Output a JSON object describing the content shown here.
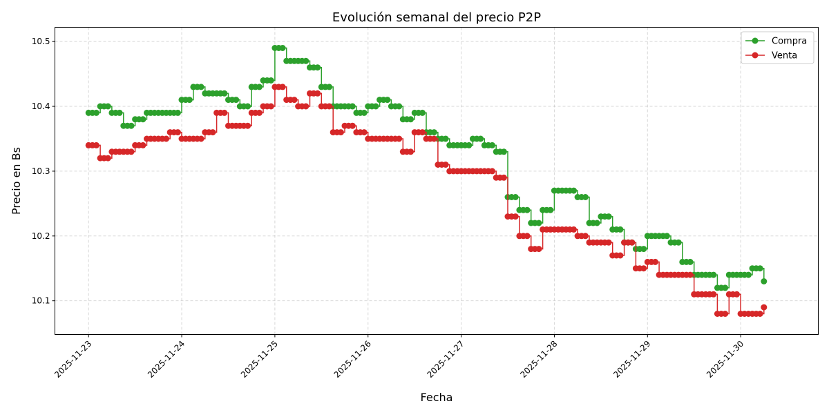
{
  "chart_data": {
    "type": "line",
    "title": "Evolución semanal del precio P2P",
    "xlabel": "Fecha",
    "ylabel": "Precio en Bs",
    "xlim": [
      "2025-11-22 15:20",
      "2025-11-30 20:00"
    ],
    "ylim": [
      10.048,
      10.522
    ],
    "x_ticks": [
      "2025-11-23",
      "2025-11-24",
      "2025-11-25",
      "2025-11-26",
      "2025-11-27",
      "2025-11-28",
      "2025-11-29",
      "2025-11-30"
    ],
    "y_ticks": [
      "10.1",
      "10.2",
      "10.3",
      "10.4",
      "10.5"
    ],
    "grid": true,
    "legend_position": "top-right",
    "x": [
      "2025-11-23 00:00",
      "2025-11-23 03:00",
      "2025-11-23 06:00",
      "2025-11-23 09:00",
      "2025-11-23 12:00",
      "2025-11-23 15:00",
      "2025-11-23 18:00",
      "2025-11-23 21:00",
      "2025-11-24 00:00",
      "2025-11-24 03:00",
      "2025-11-24 06:00",
      "2025-11-24 09:00",
      "2025-11-24 12:00",
      "2025-11-24 15:00",
      "2025-11-24 18:00",
      "2025-11-24 21:00",
      "2025-11-25 00:00",
      "2025-11-25 03:00",
      "2025-11-25 06:00",
      "2025-11-25 09:00",
      "2025-11-25 12:00",
      "2025-11-25 15:00",
      "2025-11-25 18:00",
      "2025-11-25 21:00",
      "2025-11-26 00:00",
      "2025-11-26 03:00",
      "2025-11-26 06:00",
      "2025-11-26 09:00",
      "2025-11-26 12:00",
      "2025-11-26 15:00",
      "2025-11-26 18:00",
      "2025-11-26 21:00",
      "2025-11-27 00:00",
      "2025-11-27 03:00",
      "2025-11-27 06:00",
      "2025-11-27 09:00",
      "2025-11-27 12:00",
      "2025-11-27 15:00",
      "2025-11-27 18:00",
      "2025-11-27 21:00",
      "2025-11-28 00:00",
      "2025-11-28 03:00",
      "2025-11-28 06:00",
      "2025-11-28 09:00",
      "2025-11-28 12:00",
      "2025-11-28 15:00",
      "2025-11-28 18:00",
      "2025-11-28 21:00",
      "2025-11-29 00:00",
      "2025-11-29 03:00",
      "2025-11-29 06:00",
      "2025-11-29 09:00",
      "2025-11-29 12:00",
      "2025-11-29 15:00",
      "2025-11-29 18:00",
      "2025-11-29 21:00",
      "2025-11-30 00:00",
      "2025-11-30 03:00",
      "2025-11-30 06:00"
    ],
    "series": [
      {
        "name": "Compra",
        "color": "#2ca02c",
        "marker": "circle",
        "values": [
          10.39,
          10.4,
          10.39,
          10.37,
          10.38,
          10.39,
          10.39,
          10.39,
          10.41,
          10.43,
          10.42,
          10.42,
          10.41,
          10.4,
          10.43,
          10.44,
          10.49,
          10.47,
          10.47,
          10.46,
          10.43,
          10.4,
          10.4,
          10.39,
          10.4,
          10.41,
          10.4,
          10.38,
          10.39,
          10.36,
          10.35,
          10.34,
          10.34,
          10.35,
          10.34,
          10.33,
          10.26,
          10.24,
          10.22,
          10.24,
          10.27,
          10.27,
          10.26,
          10.22,
          10.23,
          10.21,
          10.19,
          10.18,
          10.2,
          10.2,
          10.19,
          10.16,
          10.14,
          10.14,
          10.12,
          10.14,
          10.14,
          10.15,
          10.13
        ]
      },
      {
        "name": "Venta",
        "color": "#d62728",
        "marker": "circle",
        "values": [
          10.34,
          10.32,
          10.33,
          10.33,
          10.34,
          10.35,
          10.35,
          10.36,
          10.35,
          10.35,
          10.36,
          10.39,
          10.37,
          10.37,
          10.39,
          10.4,
          10.43,
          10.41,
          10.4,
          10.42,
          10.4,
          10.36,
          10.37,
          10.36,
          10.35,
          10.35,
          10.35,
          10.33,
          10.36,
          10.35,
          10.31,
          10.3,
          10.3,
          10.3,
          10.3,
          10.29,
          10.23,
          10.2,
          10.18,
          10.21,
          10.21,
          10.21,
          10.2,
          10.19,
          10.19,
          10.17,
          10.19,
          10.15,
          10.16,
          10.14,
          10.14,
          10.14,
          10.11,
          10.11,
          10.08,
          10.11,
          10.08,
          10.08,
          10.09
        ]
      }
    ]
  }
}
